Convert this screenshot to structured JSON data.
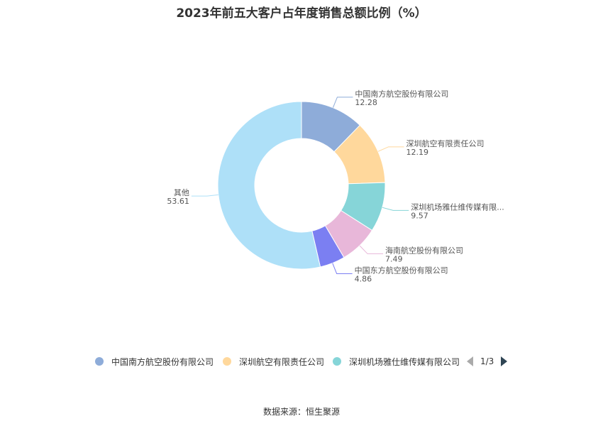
{
  "chart_data": {
    "type": "pie",
    "title": "2023年前五大客户占年度销售总额比例（%）",
    "slices": [
      {
        "name": "中国南方航空股份有限公司",
        "label": "中国南方航空股份有限公司",
        "value": 12.28,
        "color": "#8eacd9"
      },
      {
        "name": "深圳航空有限责任公司",
        "label": "深圳航空有限责任公司",
        "value": 12.19,
        "color": "#ffd89c"
      },
      {
        "name": "深圳机场雅仕维传媒有限公司",
        "label": "深圳机场雅仕维传媒有限...",
        "value": 9.57,
        "color": "#86d5d8"
      },
      {
        "name": "海南航空股份有限公司",
        "label": "海南航空股份有限公司",
        "value": 7.49,
        "color": "#e8b7d9"
      },
      {
        "name": "中国东方航空股份有限公司",
        "label": "中国东方航空股份有限公司",
        "value": 4.86,
        "color": "#7b7ff2"
      },
      {
        "name": "其他",
        "label": "其他",
        "value": 53.61,
        "color": "#aee0f8"
      }
    ],
    "legend_position": "bottom"
  },
  "legend": {
    "page": "1/3"
  },
  "source": "数据来源：恒生聚源"
}
